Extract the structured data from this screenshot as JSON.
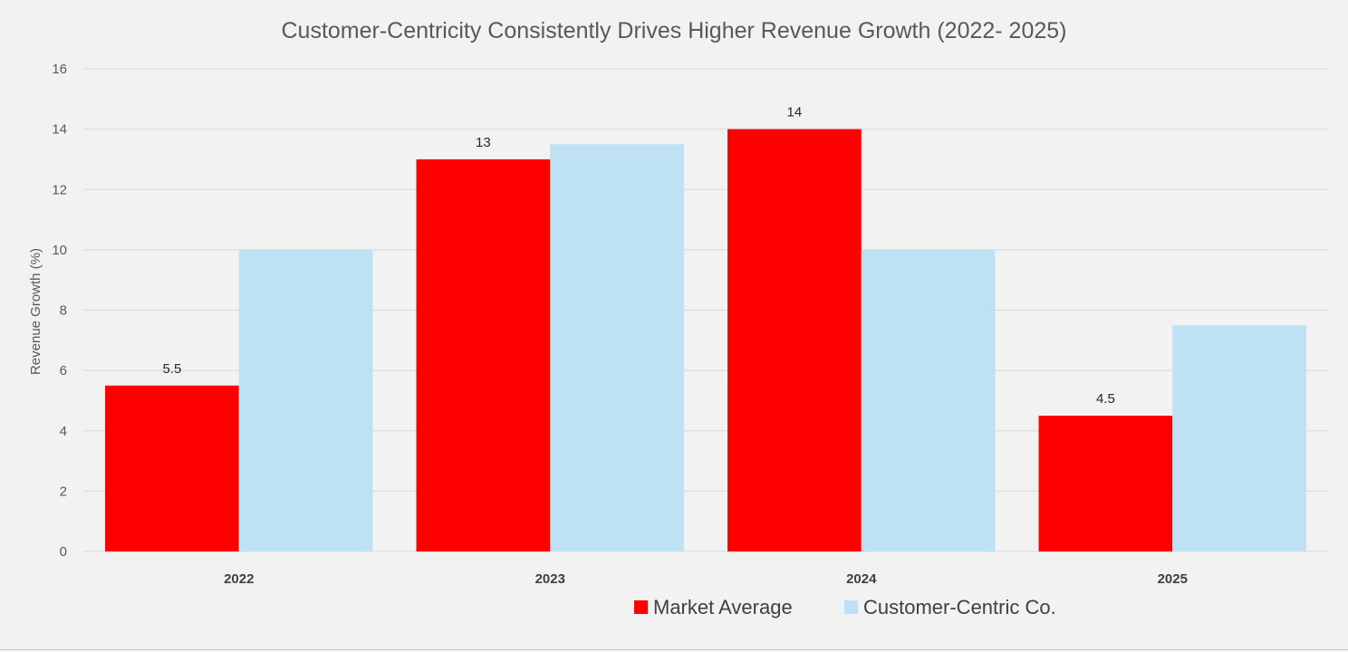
{
  "chart_data": {
    "type": "bar",
    "title": "Customer-Centricity Consistently Drives Higher Revenue Growth (2022- 2025)",
    "xlabel": "",
    "ylabel": "Revenue Growth (%)",
    "ylim": [
      0,
      16
    ],
    "yticks": [
      0,
      2,
      4,
      6,
      8,
      10,
      12,
      14,
      16
    ],
    "grid": true,
    "legend_position": "bottom",
    "categories": [
      "2022",
      "2023",
      "2024",
      "2025"
    ],
    "series": [
      {
        "name": "Market Average",
        "color": "#ff0000",
        "values": [
          5.5,
          13,
          14,
          4.5
        ],
        "data_labels": [
          "5.5",
          "13",
          "14",
          "4.5"
        ]
      },
      {
        "name": "Customer-Centric Co.",
        "color": "#bfe1f4",
        "values": [
          10,
          13.5,
          10,
          7.5
        ],
        "data_labels": []
      }
    ]
  }
}
